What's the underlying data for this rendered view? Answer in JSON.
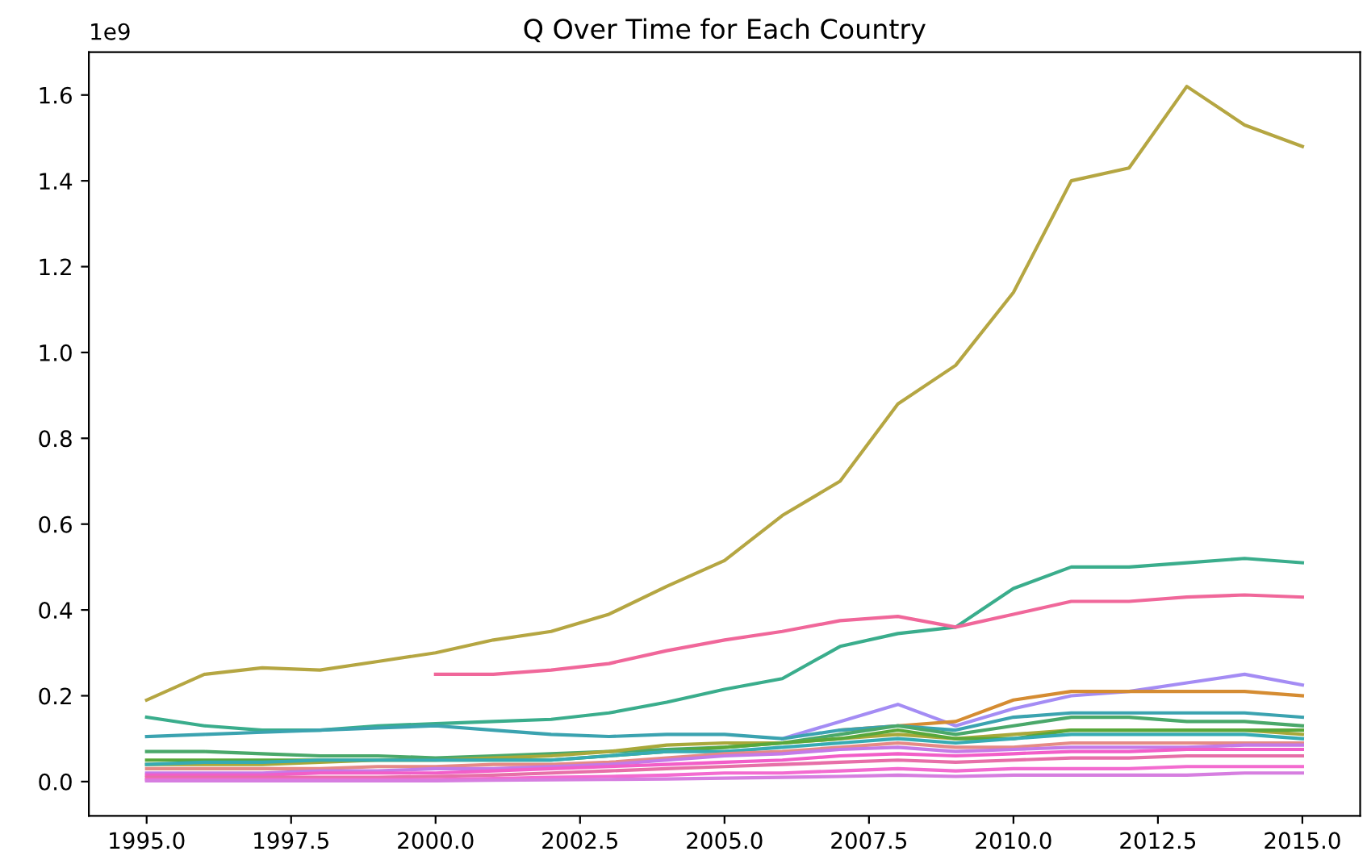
{
  "chart_data": {
    "type": "line",
    "title": "Q Over Time for Each Country",
    "annotations": [
      "1e9"
    ],
    "x": [
      1995,
      1996,
      1997,
      1998,
      1999,
      2000,
      2001,
      2002,
      2003,
      2004,
      2005,
      2006,
      2007,
      2008,
      2009,
      2010,
      2011,
      2012,
      2013,
      2014,
      2015
    ],
    "series": [
      {
        "color": "#b5a642",
        "values": [
          0.19,
          0.25,
          0.265,
          0.26,
          0.28,
          0.3,
          0.33,
          0.35,
          0.39,
          0.455,
          0.515,
          0.62,
          0.7,
          0.88,
          0.97,
          1.14,
          1.4,
          1.43,
          1.62,
          1.53,
          1.48
        ]
      },
      {
        "color": "#3aad8c",
        "values": [
          0.15,
          0.13,
          0.12,
          0.12,
          0.13,
          0.135,
          0.14,
          0.145,
          0.16,
          0.185,
          0.215,
          0.24,
          0.315,
          0.345,
          0.36,
          0.45,
          0.5,
          0.5,
          0.51,
          0.52,
          0.51
        ]
      },
      {
        "color": "#f0679a",
        "values": [
          null,
          null,
          null,
          null,
          null,
          0.25,
          0.25,
          0.26,
          0.275,
          0.305,
          0.33,
          0.35,
          0.375,
          0.385,
          0.36,
          0.39,
          0.42,
          0.42,
          0.43,
          0.435,
          0.43
        ]
      },
      {
        "color": "#a48cf4",
        "values": [
          null,
          null,
          null,
          null,
          null,
          null,
          null,
          null,
          null,
          null,
          null,
          0.1,
          0.14,
          0.18,
          0.13,
          0.17,
          0.2,
          0.21,
          0.23,
          0.25,
          0.225
        ]
      },
      {
        "color": "#d58c32",
        "values": [
          null,
          null,
          null,
          null,
          null,
          null,
          null,
          null,
          null,
          null,
          null,
          null,
          0.12,
          0.13,
          0.14,
          0.19,
          0.21,
          0.21,
          0.21,
          0.21,
          0.2
        ]
      },
      {
        "color": "#3ba3b0",
        "values": [
          0.105,
          0.11,
          0.115,
          0.12,
          0.125,
          0.13,
          0.12,
          0.11,
          0.105,
          0.11,
          0.11,
          0.1,
          0.12,
          0.13,
          0.12,
          0.15,
          0.16,
          0.16,
          0.16,
          0.16,
          0.15
        ]
      },
      {
        "color": "#4aa86a",
        "values": [
          0.07,
          0.07,
          0.065,
          0.06,
          0.06,
          0.055,
          0.06,
          0.065,
          0.07,
          0.075,
          0.08,
          0.09,
          0.11,
          0.13,
          0.11,
          0.13,
          0.15,
          0.15,
          0.14,
          0.14,
          0.13
        ]
      },
      {
        "color": "#a8a83a",
        "values": [
          0.04,
          0.04,
          0.04,
          0.045,
          0.05,
          0.05,
          0.055,
          0.06,
          0.07,
          0.085,
          0.09,
          0.09,
          0.1,
          0.11,
          0.1,
          0.11,
          0.12,
          0.12,
          0.12,
          0.12,
          0.11
        ]
      },
      {
        "color": "#59a83a",
        "values": [
          0.05,
          0.05,
          0.05,
          0.05,
          0.05,
          0.05,
          0.05,
          0.05,
          0.06,
          0.07,
          0.08,
          0.09,
          0.1,
          0.12,
          0.1,
          0.1,
          0.12,
          0.12,
          0.12,
          0.12,
          0.12
        ]
      },
      {
        "color": "#36abb4",
        "values": [
          0.04,
          0.045,
          0.045,
          0.05,
          0.05,
          0.05,
          0.05,
          0.05,
          0.06,
          0.07,
          0.07,
          0.08,
          0.09,
          0.1,
          0.09,
          0.1,
          0.11,
          0.11,
          0.11,
          0.11,
          0.1
        ]
      },
      {
        "color": "#e58a86",
        "values": [
          0.03,
          0.03,
          0.03,
          0.03,
          0.035,
          0.035,
          0.04,
          0.04,
          0.045,
          0.055,
          0.065,
          0.07,
          0.08,
          0.09,
          0.08,
          0.08,
          0.09,
          0.09,
          0.09,
          0.09,
          0.09
        ]
      },
      {
        "color": "#c47ae8",
        "values": [
          0.02,
          0.02,
          0.02,
          0.025,
          0.025,
          0.03,
          0.03,
          0.035,
          0.04,
          0.05,
          0.06,
          0.065,
          0.075,
          0.08,
          0.07,
          0.075,
          0.08,
          0.08,
          0.08,
          0.085,
          0.085
        ]
      },
      {
        "color": "#f25ec8",
        "values": [
          0.015,
          0.015,
          0.015,
          0.02,
          0.02,
          0.02,
          0.025,
          0.03,
          0.035,
          0.04,
          0.045,
          0.05,
          0.06,
          0.065,
          0.06,
          0.065,
          0.07,
          0.07,
          0.075,
          0.075,
          0.075
        ]
      },
      {
        "color": "#e76fa8",
        "values": [
          0.01,
          0.01,
          0.01,
          0.01,
          0.01,
          0.012,
          0.015,
          0.02,
          0.025,
          0.03,
          0.035,
          0.04,
          0.045,
          0.05,
          0.045,
          0.05,
          0.055,
          0.055,
          0.06,
          0.06,
          0.06
        ]
      },
      {
        "color": "#f36bd0",
        "values": [
          0.005,
          0.005,
          0.005,
          0.005,
          0.005,
          0.005,
          0.007,
          0.01,
          0.012,
          0.015,
          0.02,
          0.02,
          0.025,
          0.03,
          0.025,
          0.03,
          0.03,
          0.03,
          0.035,
          0.035,
          0.035
        ]
      },
      {
        "color": "#d67ee0",
        "values": [
          0.002,
          0.002,
          0.002,
          0.002,
          0.002,
          0.002,
          0.003,
          0.004,
          0.005,
          0.006,
          0.008,
          0.01,
          0.012,
          0.015,
          0.012,
          0.015,
          0.015,
          0.015,
          0.015,
          0.02,
          0.02
        ]
      }
    ],
    "xlim": [
      1994,
      2016
    ],
    "ylim": [
      -0.08,
      1.7
    ],
    "xticks": [
      {
        "value": 1995,
        "label": "1995.0"
      },
      {
        "value": 1997.5,
        "label": "1997.5"
      },
      {
        "value": 2000,
        "label": "2000.0"
      },
      {
        "value": 2002.5,
        "label": "2002.5"
      },
      {
        "value": 2005,
        "label": "2005.0"
      },
      {
        "value": 2007.5,
        "label": "2007.5"
      },
      {
        "value": 2010,
        "label": "2010.0"
      },
      {
        "value": 2012.5,
        "label": "2012.5"
      },
      {
        "value": 2015,
        "label": "2015.0"
      }
    ],
    "yticks": [
      {
        "value": 0,
        "label": "0.0"
      },
      {
        "value": 0.2,
        "label": "0.2"
      },
      {
        "value": 0.4,
        "label": "0.4"
      },
      {
        "value": 0.6,
        "label": "0.6"
      },
      {
        "value": 0.8,
        "label": "0.8"
      },
      {
        "value": 1.0,
        "label": "1.0"
      },
      {
        "value": 1.2,
        "label": "1.2"
      },
      {
        "value": 1.4,
        "label": "1.4"
      },
      {
        "value": 1.6,
        "label": "1.6"
      }
    ]
  }
}
